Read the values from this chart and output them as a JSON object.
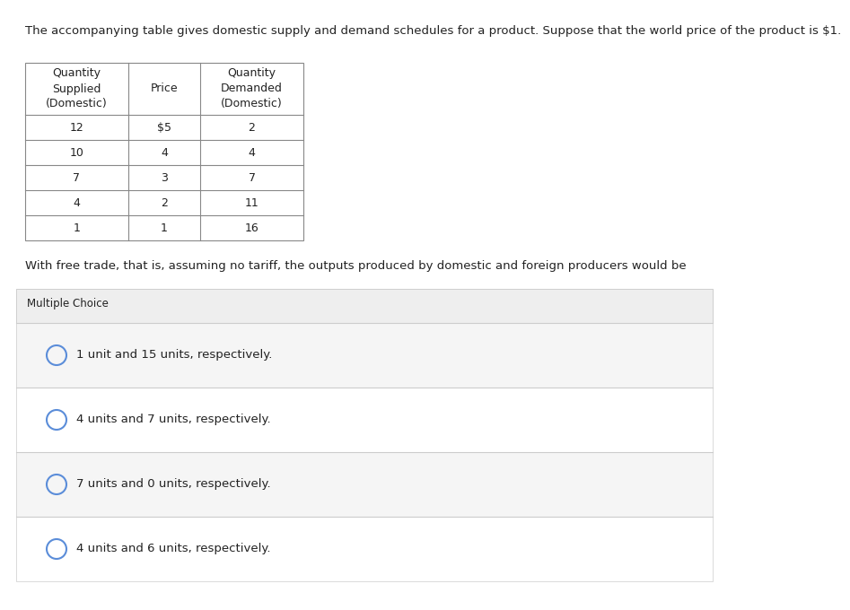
{
  "intro_text": "The accompanying table gives domestic supply and demand schedules for a product. Suppose that the world price of the product is $1.",
  "table_headers_col0": [
    "Quantity",
    "Supplied",
    "(Domestic)"
  ],
  "table_headers_col1": [
    "Price"
  ],
  "table_headers_col2": [
    "Quantity",
    "Demanded",
    "(Domestic)"
  ],
  "table_rows": [
    [
      "12",
      "$5",
      "2"
    ],
    [
      "10",
      "4",
      "4"
    ],
    [
      "7",
      "3",
      "7"
    ],
    [
      "4",
      "2",
      "11"
    ],
    [
      "1",
      "1",
      "16"
    ]
  ],
  "question_text": "With free trade, that is, assuming no tariff, the outputs produced by domestic and foreign producers would be",
  "mc_label": "Multiple Choice",
  "choices": [
    "1 unit and 15 units, respectively.",
    "4 units and 7 units, respectively.",
    "7 units and 0 units, respectively.",
    "4 units and 6 units, respectively."
  ],
  "bg_color": "#ffffff",
  "mc_header_bg": "#eeeeee",
  "choice_bg_colors": [
    "#f5f5f5",
    "#ffffff",
    "#f5f5f5",
    "#ffffff"
  ],
  "text_color": "#222222",
  "table_border_color": "#888888",
  "circle_color": "#5b8dd9",
  "intro_fontsize": 9.5,
  "table_fontsize": 9.0,
  "question_fontsize": 9.5,
  "mc_fontsize": 8.5,
  "choice_fontsize": 9.5
}
